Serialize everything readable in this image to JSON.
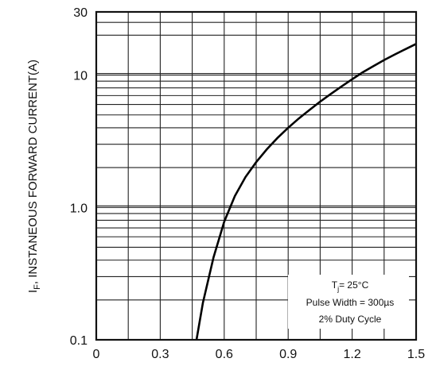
{
  "chart_data": {
    "type": "line",
    "title": "",
    "ylabel_main": "I",
    "ylabel_sub": "F",
    "ylabel_rest": ", INSTANEOUS FORWARD CURRENT(A)",
    "xlabel": "",
    "x_scale": "linear",
    "y_scale": "log",
    "xlim": [
      0,
      1.5
    ],
    "ylim": [
      0.1,
      30
    ],
    "grid": true,
    "x_ticks": [
      {
        "value": 0,
        "label": "0"
      },
      {
        "value": 0.3,
        "label": "0.3"
      },
      {
        "value": 0.6,
        "label": "0.6"
      },
      {
        "value": 0.9,
        "label": "0.9"
      },
      {
        "value": 1.2,
        "label": "1.2"
      },
      {
        "value": 1.5,
        "label": "1.5"
      }
    ],
    "y_ticks": [
      {
        "value": 0.1,
        "label": "0.1"
      },
      {
        "value": 1,
        "label": "1.0"
      },
      {
        "value": 10,
        "label": "10"
      },
      {
        "value": 30,
        "label": "30"
      }
    ],
    "series": [
      {
        "x": [
          0.47,
          0.5,
          0.55,
          0.6,
          0.65,
          0.7,
          0.75,
          0.8,
          0.85,
          0.9,
          0.95,
          1.0,
          1.05,
          1.1,
          1.15,
          1.2,
          1.25,
          1.3,
          1.35,
          1.4,
          1.45,
          1.5
        ],
        "y": [
          0.1,
          0.19,
          0.42,
          0.78,
          1.22,
          1.7,
          2.2,
          2.75,
          3.35,
          4.0,
          4.7,
          5.45,
          6.3,
          7.2,
          8.2,
          9.3,
          10.5,
          11.7,
          13.0,
          14.3,
          15.7,
          17.2
        ]
      }
    ],
    "legend": {
      "position": "bottom-right",
      "line1_main": "T",
      "line1_sub": "j",
      "line1_rest": "= 25°C",
      "line2": "Pulse Width = 300µs",
      "line3": "2% Duty Cycle"
    }
  }
}
